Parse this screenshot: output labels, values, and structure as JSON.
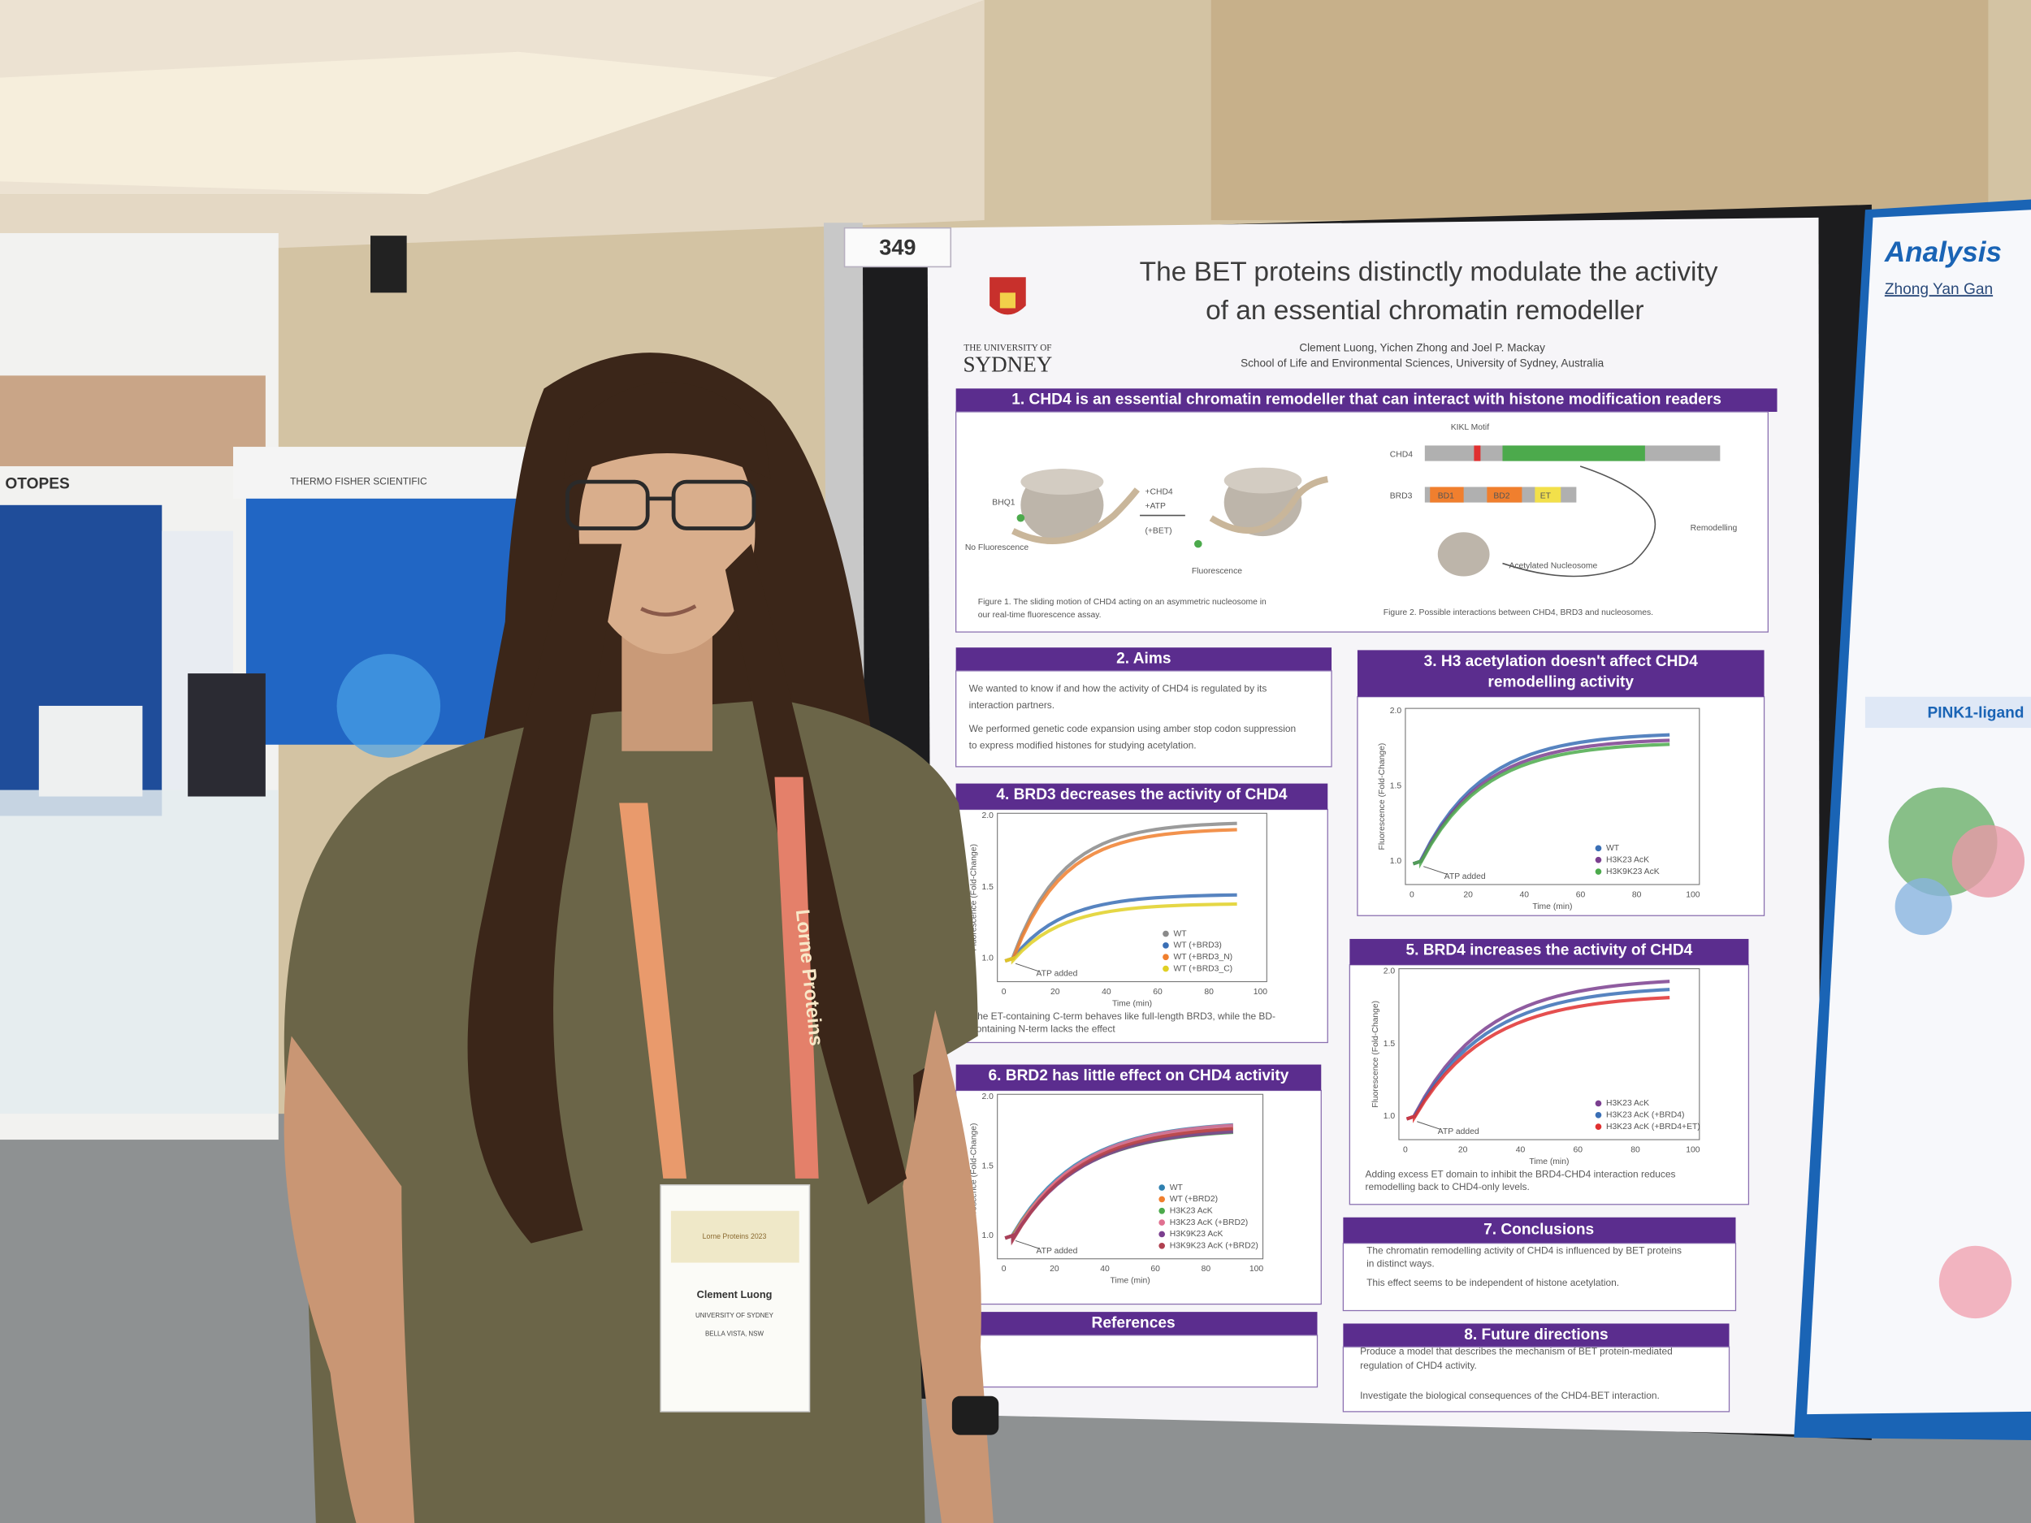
{
  "booth_signs": [
    "OTOPES",
    "THERMO FISHER SCIENTIFIC"
  ],
  "poster": {
    "number": "349",
    "university": [
      "THE UNIVERSITY OF",
      "SYDNEY"
    ],
    "title": [
      "The BET proteins distinctly modulate the activity",
      "of an essential chromatin remodeller"
    ],
    "authors": "Clement Luong, Yichen Zhong and Joel P. Mackay",
    "affiliation": "School of Life and Environmental Sciences, University of Sydney, Australia",
    "section1": {
      "heading": "1. CHD4 is an essential chromatin remodeller that can interact with histone modification readers",
      "figure1_labels": [
        "BHQ1",
        "No Fluorescence",
        "+CHD4",
        "+ATP",
        "(+BET)",
        "Fluorescence"
      ],
      "figure2_labels": [
        "KIKL Motif",
        "CHD4",
        "BRD3",
        "BD1",
        "BD2",
        "ET",
        "Remodelling",
        "Acetylated Nucleosome"
      ],
      "figure1_caption": [
        "Figure 1. The sliding motion of CHD4 acting on an asymmetric nucleosome in",
        "our real-time fluorescence assay."
      ],
      "figure2_caption": "Figure 2. Possible interactions between CHD4, BRD3 and nucleosomes."
    },
    "aims": {
      "heading": "2. Aims",
      "text": [
        "We wanted to know if and how the activity of CHD4 is regulated by its",
        "interaction partners.",
        "We performed genetic code expansion using amber stop codon suppression",
        "to express modified histones for studying acetylation."
      ]
    },
    "plots": [
      {
        "heading": [
          "3. H3 acetylation doesn't affect CHD4",
          "remodelling activity"
        ],
        "ylabel": "Fluorescence (Fold-Change)",
        "xlabel": "Time (min)",
        "annotation": "ATP added",
        "yticks": [
          "1.0",
          "1.5",
          "2.0"
        ],
        "xticks": [
          "0",
          "20",
          "40",
          "60",
          "80",
          "100"
        ],
        "legend": [
          {
            "name": "WT",
            "color": "#3a6fb5"
          },
          {
            "name": "H3K23 AcK",
            "color": "#7b3f8f"
          },
          {
            "name": "H3K9K23 AcK",
            "color": "#4caa4c"
          }
        ],
        "notes": []
      },
      {
        "heading": [
          "4. BRD3 decreases the activity of CHD4"
        ],
        "ylabel": "Fluorescence (Fold-Change)",
        "xlabel": "Time (min)",
        "annotation": "ATP added",
        "yticks": [
          "1.0",
          "1.5",
          "2.0"
        ],
        "xticks": [
          "0",
          "20",
          "40",
          "60",
          "80",
          "100"
        ],
        "legend": [
          {
            "name": "WT",
            "color": "#8a8a8a"
          },
          {
            "name": "WT (+BRD3)",
            "color": "#3a6fb5"
          },
          {
            "name": "WT (+BRD3_N)",
            "color": "#f07f2e"
          },
          {
            "name": "WT (+BRD3_C)",
            "color": "#e0d024"
          }
        ],
        "notes": [
          "The ET-containing C-term behaves like full-length BRD3, while the BD-",
          "containing N-term lacks the effect"
        ]
      },
      {
        "heading": [
          "5. BRD4 increases the activity of CHD4"
        ],
        "ylabel": "Fluorescence (Fold-Change)",
        "xlabel": "Time (min)",
        "annotation": "ATP added",
        "yticks": [
          "1.0",
          "1.5",
          "2.0"
        ],
        "xticks": [
          "0",
          "20",
          "40",
          "60",
          "80",
          "100"
        ],
        "legend": [
          {
            "name": "H3K23 AcK",
            "color": "#7b3f8f"
          },
          {
            "name": "H3K23 AcK (+BRD4)",
            "color": "#3a6fb5"
          },
          {
            "name": "H3K23 AcK (+BRD4+ET)",
            "color": "#e03030"
          }
        ],
        "notes": [
          "Adding excess ET domain to inhibit the BRD4-CHD4 interaction reduces",
          "remodelling back to CHD4-only levels."
        ]
      },
      {
        "heading": [
          "6. BRD2 has little effect on CHD4 activity"
        ],
        "ylabel": "Fluorescence (Fold-Change)",
        "xlabel": "Time (min)",
        "annotation": "ATP added",
        "yticks": [
          "1.0",
          "1.5",
          "2.0"
        ],
        "xticks": [
          "0",
          "20",
          "40",
          "60",
          "80",
          "100"
        ],
        "legend": [
          {
            "name": "WT",
            "color": "#2f80b0"
          },
          {
            "name": "WT (+BRD2)",
            "color": "#f07f2e"
          },
          {
            "name": "H3K23 AcK",
            "color": "#4caa4c"
          },
          {
            "name": "H3K23 AcK (+BRD2)",
            "color": "#e07090"
          },
          {
            "name": "H3K9K23 AcK",
            "color": "#7b3f8f"
          },
          {
            "name": "H3K9K23 AcK (+BRD2)",
            "color": "#b04050"
          }
        ],
        "notes": []
      }
    ],
    "conclusions": {
      "heading": "7. Conclusions",
      "text": [
        "The chromatin remodelling activity of CHD4 is influenced by BET proteins",
        "in distinct ways.",
        "This effect seems to be independent of histone acetylation."
      ]
    },
    "future": {
      "heading": "8. Future directions",
      "text": [
        "Produce a model that describes the mechanism of BET protein-mediated",
        "regulation of CHD4 activity.",
        "Investigate the biological consequences of the CHD4-BET interaction."
      ]
    },
    "references": {
      "heading": "References"
    }
  },
  "right_poster": {
    "title": "Analysis",
    "author": "Zhong Yan Gan",
    "section": "PINK1-ligand"
  },
  "lanyard": "Lorne Proteins",
  "badge": {
    "event": "Lorne Proteins 2023",
    "name": "Clement Luong",
    "organisation": "UNIVERSITY OF SYDNEY",
    "location": "BELLA VISTA, NSW"
  }
}
